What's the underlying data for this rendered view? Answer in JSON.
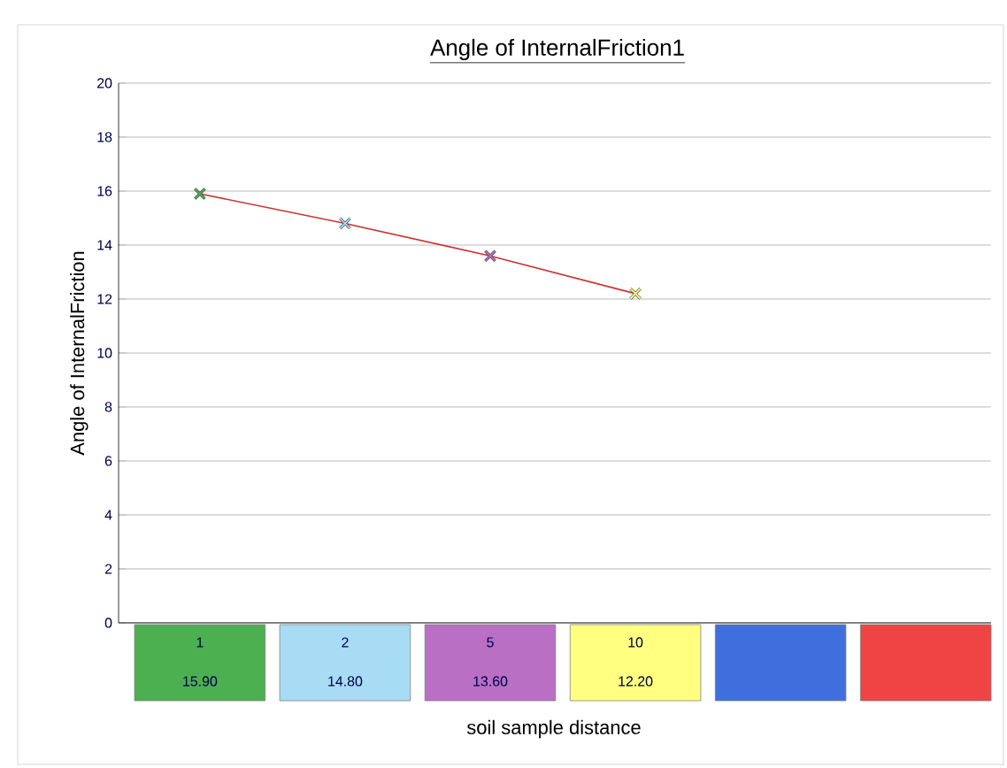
{
  "chart_data": {
    "type": "line",
    "title": "Angle of InternalFriction1",
    "xlabel": "soil sample distance",
    "ylabel": "Angle of InternalFriction",
    "categories": [
      "1",
      "2",
      "5",
      "10",
      null,
      null
    ],
    "series": [
      {
        "color": "#cc3333",
        "values": [
          15.9,
          14.8,
          13.6,
          12.2,
          null,
          null
        ],
        "colors": [
          "#4caf50",
          "#a8dcf5",
          "#b86fc4",
          "#ffff80",
          "#3f6fdc",
          "#f04444"
        ],
        "value_labels": [
          "15.90",
          "14.80",
          "13.60",
          "12.20",
          null,
          null
        ]
      }
    ],
    "ylim": [
      0,
      20
    ],
    "yticks": [
      0,
      2,
      4,
      6,
      8,
      10,
      12,
      14,
      16,
      18,
      20
    ],
    "grid": "y",
    "marker": "cross",
    "line_style": "solid"
  }
}
